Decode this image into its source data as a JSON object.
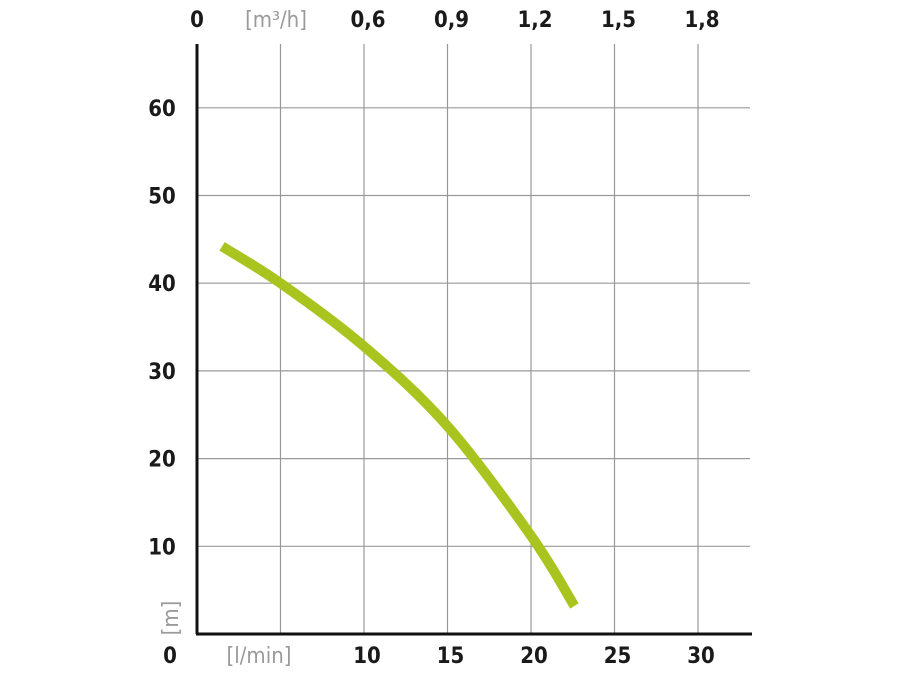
{
  "chart_data": {
    "type": "line",
    "title": "",
    "xlabel": "[l/min]",
    "ylabel": "[m]",
    "x2label": "[m³/h]",
    "xlim": [
      0,
      33
    ],
    "ylim": [
      0,
      67
    ],
    "x_ticks": [
      0,
      10,
      15,
      20,
      25,
      30
    ],
    "x_tick_labels": [
      "0",
      "10",
      "15",
      "20",
      "25",
      "30"
    ],
    "x_grid": [
      5,
      10,
      15,
      20,
      25,
      30
    ],
    "x2_ticks": [
      0,
      10,
      15,
      20,
      25,
      30
    ],
    "x2_tick_labels": [
      "0",
      "0,6",
      "0,9",
      "1,2",
      "1,5",
      "1,8"
    ],
    "y_ticks": [
      10,
      20,
      30,
      40,
      50,
      60
    ],
    "y_tick_labels": [
      "10",
      "20",
      "30",
      "40",
      "50",
      "60"
    ],
    "y_zero_label": "0",
    "grid": true,
    "line_color": "#a9c41e",
    "series": [
      {
        "x": [
          1.5,
          5,
          10,
          15,
          20,
          22.6
        ],
        "y": [
          44.2,
          40,
          32.8,
          23.7,
          11.2,
          3.2
        ]
      }
    ]
  }
}
